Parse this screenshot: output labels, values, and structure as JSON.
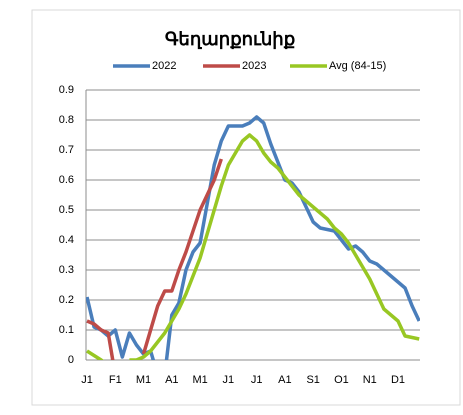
{
  "chart_data": {
    "type": "line",
    "title": "Գեղարքունիք",
    "categories": [
      "J1",
      null,
      null,
      null,
      "F1",
      null,
      null,
      null,
      "M1",
      null,
      null,
      null,
      "A1",
      null,
      null,
      null,
      "M1",
      null,
      null,
      null,
      "J1",
      null,
      null,
      null,
      "J1",
      null,
      null,
      null,
      "A1",
      null,
      null,
      null,
      "S1",
      null,
      null,
      null,
      "O1",
      null,
      null,
      null,
      "N1",
      null,
      null,
      null,
      "D1",
      null,
      null,
      null
    ],
    "series": [
      {
        "name": "2022",
        "color": "#4a7ebb",
        "values": [
          0.21,
          0.11,
          0.1,
          0.08,
          0.1,
          0.01,
          0.09,
          0.05,
          0.02,
          0.03,
          -0.05,
          -0.05,
          0.15,
          0.19,
          0.3,
          0.36,
          0.39,
          0.52,
          0.65,
          0.73,
          0.78,
          0.78,
          0.78,
          0.79,
          0.81,
          0.79,
          0.72,
          0.66,
          0.6,
          0.59,
          0.56,
          0.51,
          0.46,
          0.44,
          0.435,
          0.43,
          0.4,
          0.37,
          0.38,
          0.36,
          0.33,
          0.32,
          0.3,
          0.28,
          0.26,
          0.24,
          0.18,
          0.13
        ]
      },
      {
        "name": "2023",
        "color": "#be4b48",
        "values": [
          0.13,
          0.12,
          0.1,
          0.09,
          -0.05,
          null,
          null,
          null,
          0.02,
          0.1,
          0.18,
          0.23,
          0.23,
          0.3,
          0.36,
          0.43,
          0.5,
          0.55,
          0.6,
          0.67,
          null,
          null,
          null,
          null,
          null,
          null,
          null,
          null,
          null,
          null,
          null,
          null,
          null,
          null,
          null,
          null,
          null,
          null,
          null,
          null,
          null,
          null,
          null,
          null,
          null,
          null,
          null,
          null
        ]
      },
      {
        "name": "Avg (84-15)",
        "color": "#98c723",
        "values": [
          0.03,
          0.015,
          0.0,
          -0.02,
          null,
          null,
          0.0,
          0.0,
          0.01,
          0.03,
          0.06,
          0.09,
          0.13,
          0.17,
          0.22,
          0.28,
          0.34,
          0.42,
          0.5,
          0.58,
          0.65,
          0.69,
          0.73,
          0.75,
          0.73,
          0.69,
          0.66,
          0.64,
          0.61,
          0.58,
          0.55,
          0.53,
          0.51,
          0.49,
          0.47,
          0.44,
          0.42,
          0.39,
          0.35,
          0.31,
          0.27,
          0.22,
          0.17,
          0.15,
          0.13,
          0.08,
          0.075,
          0.07
        ]
      }
    ],
    "ylim": [
      0,
      0.9
    ],
    "yticks": [
      0,
      0.1,
      0.2,
      0.3,
      0.4,
      0.5,
      0.6,
      0.7,
      0.8,
      0.9
    ],
    "grid": true,
    "legend": "top"
  }
}
